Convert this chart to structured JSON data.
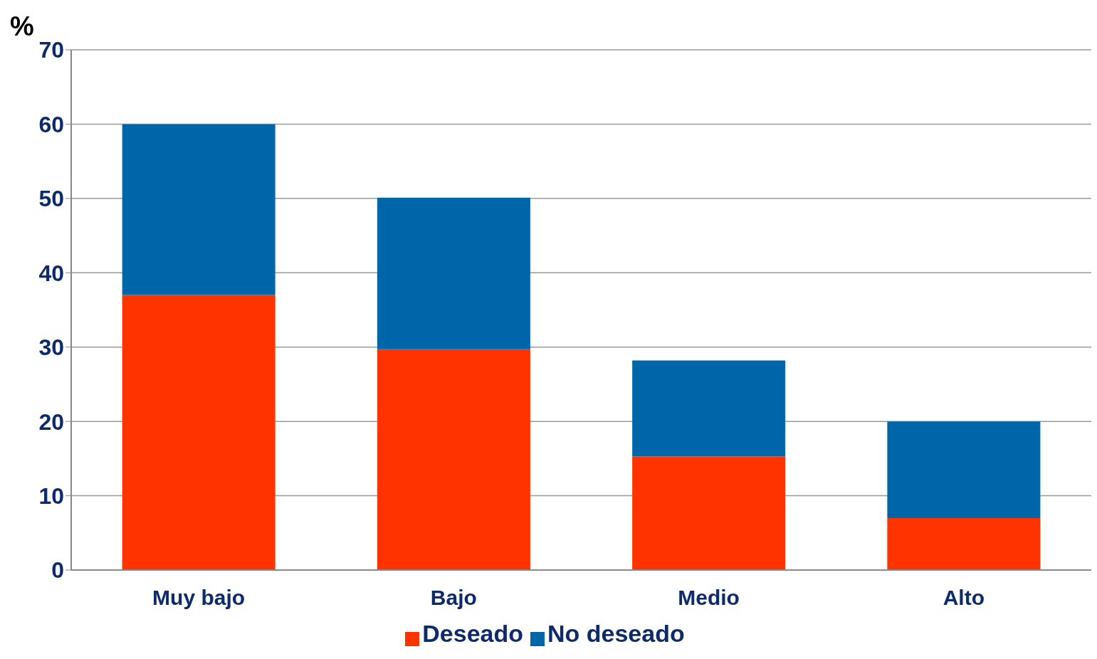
{
  "chart_data": {
    "type": "bar",
    "ylabel": "%",
    "categories": [
      "Muy bajo",
      "Bajo",
      "Medio",
      "Alto"
    ],
    "series": [
      {
        "name": "Deseado",
        "color": "#ff3300",
        "values": [
          37,
          29.7,
          15.3,
          7
        ]
      },
      {
        "name": "No deseado",
        "color": "#0066aa",
        "values": [
          23,
          20.4,
          12.9,
          13
        ]
      }
    ],
    "stacked": true,
    "ylim": [
      0,
      70
    ],
    "yticks": [
      0,
      10,
      20,
      30,
      40,
      50,
      60,
      70
    ],
    "grid": "y",
    "legend": "bottom"
  }
}
